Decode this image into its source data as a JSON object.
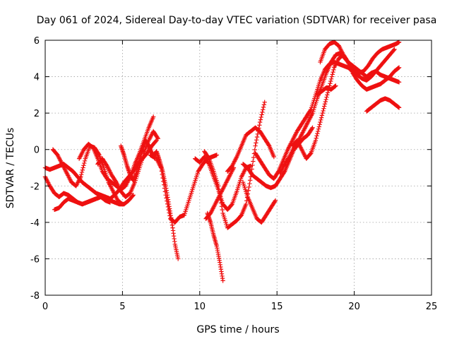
{
  "chart_data": {
    "type": "scatter",
    "title": "Day 061 of 2024, Sidereal Day-to-day VTEC variation (SDTVAR) for receiver pasa",
    "xlabel": "GPS time / hours",
    "ylabel": "SDTVAR / TECUs",
    "xlim": [
      0,
      25
    ],
    "ylim": [
      -8,
      6
    ],
    "x_ticks": [
      "0",
      "5",
      "10",
      "15",
      "20",
      "25"
    ],
    "y_ticks": [
      "-8",
      "-6",
      "-4",
      "-2",
      "0",
      "2",
      "4",
      "6"
    ],
    "grid": true,
    "marker": "plus",
    "color": "#ee1111",
    "series": [
      {
        "x": [
          0,
          0.3,
          0.6,
          0.9,
          1.2,
          1.5,
          1.8,
          2.1,
          2.4,
          2.7,
          3.0,
          3.3,
          3.6,
          3.9,
          4.2,
          4.5,
          4.8,
          5.1,
          5.4,
          5.7,
          6.0,
          6.3,
          6.6,
          6.9,
          7.2
        ],
        "y": [
          -1.0,
          -1.1,
          -1.0,
          -0.9,
          -0.8,
          -1.0,
          -1.2,
          -1.5,
          -1.8,
          -2.0,
          -2.2,
          -2.4,
          -2.5,
          -2.6,
          -2.7,
          -2.5,
          -2.2,
          -1.8,
          -1.5,
          -1.2,
          -0.8,
          -0.5,
          -0.2,
          0.2,
          0.5
        ]
      },
      {
        "x": [
          0,
          0.3,
          0.6,
          0.9,
          1.2,
          1.5,
          1.8,
          2.1,
          2.4,
          2.7,
          3.0,
          3.3,
          3.6,
          3.9,
          4.2,
          4.5,
          4.8,
          5.1,
          5.4,
          5.7
        ],
        "y": [
          -1.5,
          -2.0,
          -2.4,
          -2.6,
          -2.4,
          -2.5,
          -2.7,
          -2.9,
          -3.0,
          -2.9,
          -2.8,
          -2.7,
          -2.6,
          -2.7,
          -2.8,
          -2.9,
          -3.0,
          -3.0,
          -2.8,
          -2.5
        ]
      },
      {
        "x": [
          0.6,
          0.9,
          1.2,
          1.5,
          1.8,
          2.1,
          2.4,
          2.7,
          3.0,
          3.3,
          3.6,
          3.9,
          4.2
        ],
        "y": [
          -3.3,
          -3.2,
          -2.9,
          -2.7,
          -2.8,
          -2.9,
          -3.0,
          -2.9,
          -2.8,
          -2.7,
          -2.6,
          -2.8,
          -2.9
        ]
      },
      {
        "x": [
          0.5,
          0.8,
          1.1,
          1.4,
          1.7,
          2.0,
          2.3,
          2.6,
          2.9,
          3.2,
          3.5,
          3.8,
          4.1,
          4.4,
          4.7,
          5.0
        ],
        "y": [
          0.0,
          -0.3,
          -0.8,
          -1.3,
          -1.8,
          -2.0,
          -1.5,
          -0.5,
          0.2,
          0.1,
          -0.3,
          -1.0,
          -1.8,
          -2.3,
          -2.8,
          -3.0
        ]
      },
      {
        "x": [
          2.2,
          2.5,
          2.8,
          3.1,
          3.4,
          3.7,
          4.0,
          4.3,
          4.6,
          4.9,
          5.2,
          5.5,
          5.8,
          6.1,
          6.4,
          6.7,
          7.0
        ],
        "y": [
          -0.5,
          0.0,
          0.3,
          0.1,
          -0.5,
          -1.2,
          -1.6,
          -1.8,
          -2.0,
          -2.2,
          -2.0,
          -1.5,
          -0.8,
          -0.2,
          0.5,
          1.2,
          1.8
        ]
      },
      {
        "x": [
          3.4,
          3.7,
          4.0,
          4.3,
          4.6,
          4.9,
          5.2,
          5.5,
          5.8,
          6.1,
          6.4,
          6.7,
          7.0,
          7.3
        ],
        "y": [
          -0.8,
          -0.5,
          -0.9,
          -1.4,
          -1.8,
          -2.3,
          -2.6,
          -2.4,
          -1.8,
          -1.0,
          -0.2,
          0.5,
          1.0,
          0.6
        ]
      },
      {
        "x": [
          4.9,
          5.1,
          5.3,
          5.5,
          5.7,
          5.9,
          6.1,
          6.3,
          6.5,
          6.7,
          6.9,
          7.1
        ],
        "y": [
          0.2,
          -0.3,
          -0.9,
          -1.4,
          -1.7,
          -1.3,
          -0.6,
          0.0,
          0.5,
          0.2,
          -0.2,
          -0.5
        ]
      },
      {
        "x": [
          6.8,
          7.0,
          7.2,
          7.4,
          7.6,
          7.8,
          8.0,
          8.2,
          8.4,
          8.6
        ],
        "y": [
          -0.3,
          -0.4,
          -0.1,
          -0.6,
          -1.2,
          -2.0,
          -3.0,
          -4.0,
          -5.2,
          -6.0
        ]
      },
      {
        "x": [
          7.2,
          7.5,
          7.8,
          8.1,
          8.4,
          8.7,
          9.0,
          9.3,
          9.6,
          9.9,
          10.2,
          10.5,
          10.8,
          11.1
        ],
        "y": [
          -0.5,
          -1.0,
          -2.5,
          -3.8,
          -4.0,
          -3.7,
          -3.6,
          -2.8,
          -2.0,
          -1.2,
          -0.8,
          -0.5,
          -0.4,
          -0.3
        ]
      },
      {
        "x": [
          9.7,
          10.0,
          10.3,
          10.6,
          10.9,
          11.2,
          11.5,
          11.8,
          12.1,
          12.4,
          12.7,
          13.0,
          13.3
        ],
        "y": [
          -0.5,
          -0.7,
          -0.4,
          -0.8,
          -1.5,
          -2.2,
          -3.0,
          -3.3,
          -3.0,
          -2.3,
          -1.5,
          -1.0,
          -0.9
        ]
      },
      {
        "x": [
          10.3,
          10.6,
          10.9,
          11.2,
          11.5,
          11.8,
          12.1,
          12.4,
          12.7,
          13.0,
          13.3,
          13.6,
          13.9,
          14.2
        ],
        "y": [
          -0.1,
          -0.5,
          -1.2,
          -2.0,
          -3.5,
          -4.3,
          -4.1,
          -3.9,
          -3.6,
          -3.0,
          -1.5,
          0.2,
          1.5,
          2.6
        ]
      },
      {
        "x": [
          10.5,
          10.7,
          10.9,
          11.1,
          11.3,
          11.5
        ],
        "y": [
          -3.5,
          -4.0,
          -4.7,
          -5.3,
          -6.2,
          -7.2
        ]
      },
      {
        "x": [
          10.4,
          10.7,
          11.0,
          11.3,
          11.6,
          11.9,
          12.2
        ],
        "y": [
          -3.8,
          -3.5,
          -3.0,
          -2.5,
          -2.0,
          -1.5,
          -1.0
        ]
      },
      {
        "x": [
          11.8,
          12.1,
          12.4,
          12.7,
          13.0,
          13.3,
          13.6,
          13.9,
          14.2,
          14.5,
          14.8
        ],
        "y": [
          -1.2,
          -0.9,
          -0.4,
          0.2,
          0.8,
          1.0,
          1.2,
          1.0,
          0.6,
          0.2,
          -0.4
        ]
      },
      {
        "x": [
          12.8,
          13.1,
          13.4,
          13.7,
          14.0,
          14.3,
          14.6,
          14.9
        ],
        "y": [
          -1.8,
          -2.6,
          -3.2,
          -3.8,
          -4.0,
          -3.6,
          -3.2,
          -2.8
        ]
      },
      {
        "x": [
          12.8,
          13.1,
          13.4,
          13.7,
          14.0,
          14.3,
          14.6,
          14.9,
          15.2,
          15.5,
          15.8,
          16.1,
          16.4,
          16.7,
          17.0,
          17.3
        ],
        "y": [
          -0.8,
          -1.0,
          -1.4,
          -1.6,
          -1.8,
          -2.0,
          -2.1,
          -2.0,
          -1.6,
          -1.2,
          -0.6,
          0.0,
          0.3,
          0.6,
          0.8,
          1.2
        ]
      },
      {
        "x": [
          13.6,
          13.9,
          14.2,
          14.5,
          14.8,
          15.1,
          15.4,
          15.7,
          16.0,
          16.3,
          16.6,
          16.9,
          17.2,
          17.5,
          17.8,
          18.1,
          18.4,
          18.7,
          19.0,
          19.3,
          19.6,
          19.9,
          20.2,
          20.5,
          20.8,
          21.1,
          21.4,
          21.7,
          22.0,
          22.3,
          22.6
        ],
        "y": [
          -0.2,
          -0.6,
          -1.0,
          -1.4,
          -1.6,
          -1.2,
          -0.6,
          0.0,
          0.5,
          1.0,
          1.4,
          1.8,
          2.2,
          3.0,
          3.8,
          4.4,
          4.7,
          4.8,
          4.7,
          4.6,
          4.5,
          4.3,
          4.1,
          3.9,
          3.8,
          4.0,
          4.3,
          4.6,
          4.9,
          5.2,
          5.5
        ]
      },
      {
        "x": [
          15.2,
          15.5,
          15.8,
          16.1,
          16.4,
          16.7,
          17.0,
          17.3,
          17.6,
          17.9,
          18.2,
          18.5,
          18.8,
          19.1,
          19.4,
          19.7,
          20.0,
          20.3,
          20.6,
          20.9,
          21.2,
          21.5,
          21.8,
          22.1,
          22.4,
          22.7,
          22.9
        ],
        "y": [
          -1.3,
          -0.8,
          -0.4,
          0.1,
          0.5,
          1.0,
          1.5,
          2.0,
          2.8,
          3.5,
          4.2,
          4.8,
          5.2,
          5.3,
          5.0,
          4.7,
          4.4,
          4.2,
          4.3,
          4.6,
          5.0,
          5.3,
          5.5,
          5.6,
          5.7,
          5.8,
          5.9
        ]
      },
      {
        "x": [
          16.0,
          16.3,
          16.6,
          16.9,
          17.2,
          17.5,
          17.8,
          18.1,
          18.4,
          18.7,
          19.0,
          19.3,
          19.6,
          19.9,
          20.2,
          20.5,
          20.8,
          21.1,
          21.4,
          21.7,
          22.0,
          22.3,
          22.6,
          22.9
        ],
        "y": [
          0.2,
          0.5,
          0.0,
          -0.5,
          -0.2,
          0.5,
          1.5,
          2.5,
          3.5,
          4.5,
          5.0,
          5.2,
          4.8,
          4.2,
          3.8,
          3.5,
          3.3,
          3.4,
          3.5,
          3.6,
          3.8,
          4.0,
          4.3,
          4.5
        ]
      },
      {
        "x": [
          17.8,
          18.1,
          18.4,
          18.7,
          19.0,
          19.3,
          19.6,
          19.9,
          20.2,
          20.5,
          20.8,
          21.1,
          21.4,
          21.7,
          22.0,
          22.3,
          22.6,
          22.9
        ],
        "y": [
          4.8,
          5.5,
          5.8,
          5.9,
          5.7,
          5.2,
          4.8,
          4.6,
          4.4,
          4.2,
          4.0,
          4.2,
          4.3,
          4.1,
          4.0,
          3.9,
          3.8,
          3.7
        ]
      },
      {
        "x": [
          17.6,
          17.9,
          18.2,
          18.5,
          18.8
        ],
        "y": [
          3.0,
          3.2,
          3.4,
          3.3,
          3.5
        ]
      },
      {
        "x": [
          20.8,
          21.1,
          21.4,
          21.7,
          22.0,
          22.3,
          22.6,
          22.9
        ],
        "y": [
          2.1,
          2.3,
          2.5,
          2.7,
          2.8,
          2.7,
          2.5,
          2.3
        ]
      }
    ]
  }
}
